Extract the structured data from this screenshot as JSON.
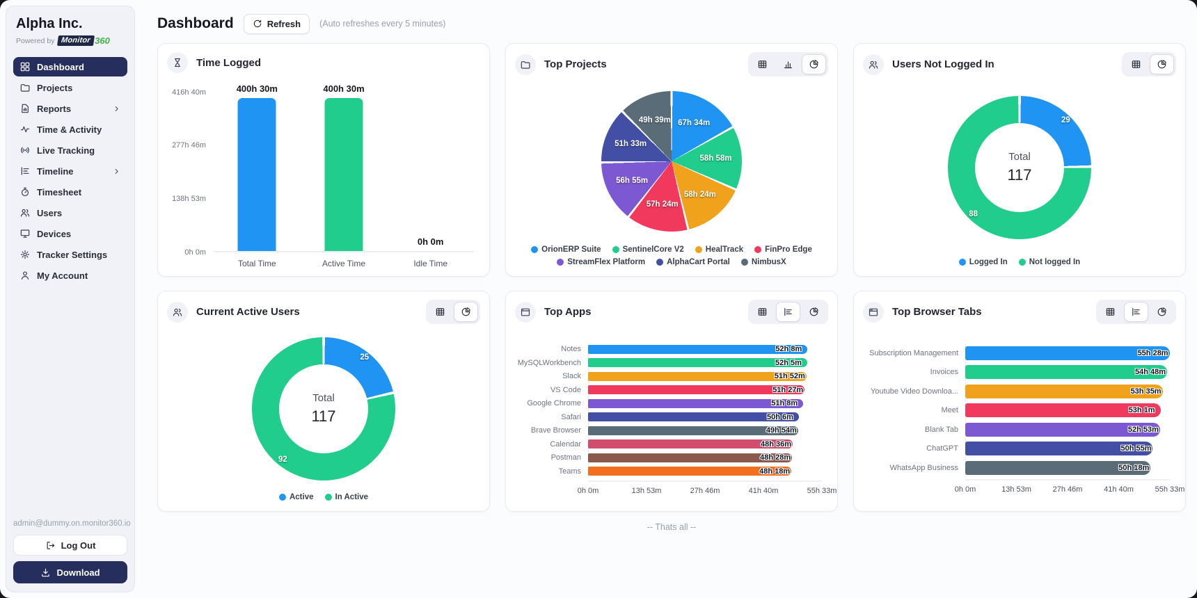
{
  "sidebar": {
    "company": "Alpha Inc.",
    "powered_by": "Powered by",
    "brand": {
      "name": "Monitor",
      "suffix": "360"
    },
    "items": [
      {
        "label": "Dashboard",
        "icon": "dashboard-icon",
        "active": true,
        "chevron": false
      },
      {
        "label": "Projects",
        "icon": "projects-icon",
        "active": false,
        "chevron": false
      },
      {
        "label": "Reports",
        "icon": "reports-icon",
        "active": false,
        "chevron": true
      },
      {
        "label": "Time & Activity",
        "icon": "activity-icon",
        "active": false,
        "chevron": false
      },
      {
        "label": "Live Tracking",
        "icon": "live-tracking-icon",
        "active": false,
        "chevron": false
      },
      {
        "label": "Timeline",
        "icon": "timeline-icon",
        "active": false,
        "chevron": true
      },
      {
        "label": "Timesheet",
        "icon": "timesheet-icon",
        "active": false,
        "chevron": false
      },
      {
        "label": "Users",
        "icon": "users-icon",
        "active": false,
        "chevron": false
      },
      {
        "label": "Devices",
        "icon": "devices-icon",
        "active": false,
        "chevron": false
      },
      {
        "label": "Tracker Settings",
        "icon": "tracker-settings-icon",
        "active": false,
        "chevron": false
      },
      {
        "label": "My Account",
        "icon": "my-account-icon",
        "active": false,
        "chevron": false
      }
    ],
    "user_email": "admin@dummy.on.monitor360.io",
    "logout_label": "Log Out",
    "download_label": "Download"
  },
  "header": {
    "title": "Dashboard",
    "refresh_label": "Refresh",
    "auto_refresh_note": "(Auto refreshes every 5 minutes)"
  },
  "footer_note": "-- Thats all --",
  "colors": {
    "brand_navy": "#262e5e",
    "brand_green": "#45b24a",
    "accent_blue": "#1f94f3",
    "accent_green": "#21cd8d"
  },
  "cards": [
    {
      "title": "Time Logged",
      "icon": "hourglass-icon",
      "views": [],
      "chart": {
        "type": "bar",
        "categories": [
          "Total Time",
          "Active Time",
          "Idle Time"
        ],
        "values": [
          "400h 30m",
          "400h 30m",
          "0h 0m"
        ],
        "values_hours": [
          400.5,
          400.5,
          0
        ],
        "colors": [
          "#1f94f3",
          "#21cd8d",
          "#94a3b8"
        ],
        "yticks": [
          "416h 40m",
          "277h 46m",
          "138h 53m",
          "0h 0m"
        ],
        "ymax_hours": 416.67
      }
    },
    {
      "title": "Top Projects",
      "icon": "folder-icon",
      "views": [
        {
          "name": "table-view-button",
          "icon": "table-icon",
          "active": false
        },
        {
          "name": "bar-chart-view-button",
          "icon": "bar-chart-icon",
          "active": false
        },
        {
          "name": "pie-chart-view-button",
          "icon": "pie-chart-icon",
          "active": true
        }
      ],
      "chart": {
        "type": "pie",
        "slices": [
          {
            "label": "OrionERP Suite",
            "value_label": "67h 34m",
            "hours": 67.57,
            "color": "#1f94f3"
          },
          {
            "label": "SentinelCore V2",
            "value_label": "58h 58m",
            "hours": 58.97,
            "color": "#21cd8d"
          },
          {
            "label": "HealTrack",
            "value_label": "58h 24m",
            "hours": 58.4,
            "color": "#f0a21d"
          },
          {
            "label": "FinPro Edge",
            "value_label": "57h 24m",
            "hours": 57.4,
            "color": "#f0395d"
          },
          {
            "label": "StreamFlex Platform",
            "value_label": "56h 55m",
            "hours": 56.92,
            "color": "#7d58d3"
          },
          {
            "label": "AlphaCart Portal",
            "value_label": "51h 33m",
            "hours": 51.55,
            "color": "#424fa5"
          },
          {
            "label": "NimbusX",
            "value_label": "49h 39m",
            "hours": 49.65,
            "color": "#5a6c77"
          }
        ]
      }
    },
    {
      "title": "Users Not Logged In",
      "icon": "users-icon",
      "views": [
        {
          "name": "table-view-button",
          "icon": "table-icon",
          "active": false
        },
        {
          "name": "pie-chart-view-button",
          "icon": "pie-chart-icon",
          "active": true
        }
      ],
      "chart": {
        "type": "donut",
        "total_label": "Total",
        "total": 117,
        "slices": [
          {
            "label": "Logged In",
            "value": 29,
            "color": "#1f94f3"
          },
          {
            "label": "Not logged In",
            "value": 88,
            "color": "#21cd8d"
          }
        ]
      }
    },
    {
      "title": "Current Active Users",
      "icon": "users-icon",
      "views": [
        {
          "name": "table-view-button",
          "icon": "table-icon",
          "active": false
        },
        {
          "name": "pie-chart-view-button",
          "icon": "pie-chart-icon",
          "active": true
        }
      ],
      "chart": {
        "type": "donut",
        "total_label": "Total",
        "total": 117,
        "slices": [
          {
            "label": "Active",
            "value": 25,
            "color": "#1f94f3"
          },
          {
            "label": "In Active",
            "value": 92,
            "color": "#21cd8d"
          }
        ]
      }
    },
    {
      "title": "Top Apps",
      "icon": "app-window-icon",
      "views": [
        {
          "name": "table-view-button",
          "icon": "table-icon",
          "active": false
        },
        {
          "name": "bar-chart-view-button",
          "icon": "hbar-chart-icon",
          "active": true
        },
        {
          "name": "pie-chart-view-button",
          "icon": "pie-chart-icon",
          "active": false
        }
      ],
      "chart": {
        "type": "hbar",
        "xticks": [
          "0h 0m",
          "13h 53m",
          "27h 46m",
          "41h 40m",
          "55h 33m"
        ],
        "xmax_hours": 55.55,
        "bars": [
          {
            "label": "Notes",
            "value_label": "52h 8m",
            "hours": 52.13,
            "color": "#1f94f3"
          },
          {
            "label": "MySQLWorkbench",
            "value_label": "52h 5m",
            "hours": 52.08,
            "color": "#21cd8d"
          },
          {
            "label": "Slack",
            "value_label": "51h 52m",
            "hours": 51.87,
            "color": "#f0a21d"
          },
          {
            "label": "VS Code",
            "value_label": "51h 27m",
            "hours": 51.45,
            "color": "#f0395d"
          },
          {
            "label": "Google Chrome",
            "value_label": "51h 8m",
            "hours": 51.13,
            "color": "#7d58d3"
          },
          {
            "label": "Safari",
            "value_label": "50h 6m",
            "hours": 50.1,
            "color": "#424fa5"
          },
          {
            "label": "Brave Browser",
            "value_label": "49h 54m",
            "hours": 49.9,
            "color": "#5a6c77"
          },
          {
            "label": "Calendar",
            "value_label": "48h 36m",
            "hours": 48.6,
            "color": "#d24d6d"
          },
          {
            "label": "Postman",
            "value_label": "48h 28m",
            "hours": 48.47,
            "color": "#8a594b"
          },
          {
            "label": "Teams",
            "value_label": "48h 18m",
            "hours": 48.3,
            "color": "#f26f1f"
          }
        ]
      }
    },
    {
      "title": "Top Browser Tabs",
      "icon": "browser-tab-icon",
      "views": [
        {
          "name": "table-view-button",
          "icon": "table-icon",
          "active": false
        },
        {
          "name": "bar-chart-view-button",
          "icon": "hbar-chart-icon",
          "active": true
        },
        {
          "name": "pie-chart-view-button",
          "icon": "pie-chart-icon",
          "active": false
        }
      ],
      "chart": {
        "type": "hbar",
        "xticks": [
          "0h 0m",
          "13h 53m",
          "27h 46m",
          "41h 40m",
          "55h 33m"
        ],
        "xmax_hours": 55.55,
        "bars": [
          {
            "label": "Subscription Management",
            "value_label": "55h 28m",
            "hours": 55.47,
            "color": "#1f94f3"
          },
          {
            "label": "Invoices",
            "value_label": "54h 48m",
            "hours": 54.8,
            "color": "#21cd8d"
          },
          {
            "label": "Youtube Video Downloa...",
            "value_label": "53h 35m",
            "hours": 53.58,
            "color": "#f0a21d"
          },
          {
            "label": "Meet",
            "value_label": "53h 1m",
            "hours": 53.02,
            "color": "#f0395d"
          },
          {
            "label": "Blank Tab",
            "value_label": "52h 53m",
            "hours": 52.88,
            "color": "#7d58d3"
          },
          {
            "label": "ChatGPT",
            "value_label": "50h 55m",
            "hours": 50.92,
            "color": "#424fa5"
          },
          {
            "label": "WhatsApp Business",
            "value_label": "50h 18m",
            "hours": 50.3,
            "color": "#5a6c77"
          }
        ]
      }
    }
  ]
}
